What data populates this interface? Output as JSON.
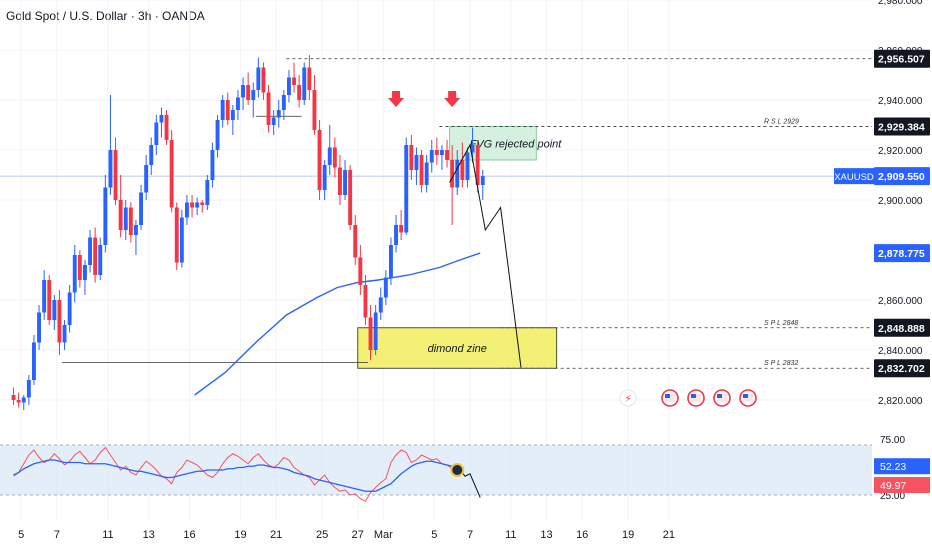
{
  "header": {
    "title": "Gold Spot / U.S. Dollar · 3h · OANDA"
  },
  "colors": {
    "bull": "#2962ff",
    "bear": "#f23645",
    "ma": "#2962ff",
    "rsi_line": "#f7525f",
    "rsi_ma": "#2962ff",
    "rsi_band": "#d7e7f5",
    "fvg_fill": "#d6f0e0",
    "zone_fill": "#f4f075",
    "axis_text": "#131722"
  },
  "chart_data": {
    "type": "candlestick",
    "symbol": "XAUUSD",
    "interval": "3h",
    "ylim": [
      2812,
      2980
    ],
    "y_ticks": [
      2820,
      2840,
      2860,
      2900,
      2920,
      2940,
      2960,
      2980
    ],
    "y_tick_labels": [
      "2,820.000",
      "2,840.000",
      "2,860.000",
      "2,900.000",
      "2,920.000",
      "2,940.000",
      "2,960.000",
      "2,980.000"
    ],
    "x_tick_labels": [
      "5",
      "7",
      "11",
      "13",
      "16",
      "19",
      "21",
      "25",
      "27",
      "Mar",
      "5",
      "7",
      "11",
      "13",
      "16",
      "19",
      "21"
    ],
    "x_tick_index": [
      2,
      9,
      19,
      27,
      35,
      45,
      52,
      61,
      68,
      73,
      83,
      90,
      98,
      105,
      112,
      121,
      129
    ],
    "bar_count": 131,
    "price_labels": [
      {
        "value": 2956.507,
        "label": "2,956.507",
        "style": "dark"
      },
      {
        "value": 2929.384,
        "label": "2,929.384",
        "style": "dark"
      },
      {
        "value": 2909.55,
        "label": "2,909.550",
        "style": "blue",
        "tag": "XAUUSD"
      },
      {
        "value": 2878.775,
        "label": "2,878.775",
        "style": "blue"
      },
      {
        "value": 2848.888,
        "label": "2,848.888",
        "style": "dark"
      },
      {
        "value": 2832.702,
        "label": "2,832.702",
        "style": "dark"
      }
    ],
    "series": [
      {
        "name": "XAUUSD",
        "kind": "candles",
        "description": "3h OHLC candles"
      },
      {
        "name": "",
        "kind": "moving_average",
        "points": [
          [
            36,
            2822
          ],
          [
            42,
            2831
          ],
          [
            48,
            2843
          ],
          [
            54,
            2854
          ],
          [
            60,
            2861
          ],
          [
            64,
            2865
          ],
          [
            68,
            2867
          ],
          [
            72,
            2868
          ],
          [
            78,
            2870
          ],
          [
            84,
            2873
          ],
          [
            88,
            2876
          ],
          [
            92,
            2878.8
          ]
        ]
      }
    ],
    "candles": [
      [
        2822,
        2825,
        2818,
        2820
      ],
      [
        2820,
        2823,
        2817,
        2819
      ],
      [
        2819,
        2822,
        2816,
        2821
      ],
      [
        2821,
        2830,
        2818,
        2828
      ],
      [
        2828,
        2846,
        2826,
        2843
      ],
      [
        2843,
        2858,
        2840,
        2855
      ],
      [
        2855,
        2872,
        2852,
        2868
      ],
      [
        2868,
        2870,
        2850,
        2852
      ],
      [
        2852,
        2862,
        2848,
        2860
      ],
      [
        2860,
        2864,
        2838,
        2843
      ],
      [
        2843,
        2852,
        2840,
        2850
      ],
      [
        2850,
        2866,
        2847,
        2863
      ],
      [
        2863,
        2882,
        2859,
        2878
      ],
      [
        2878,
        2880,
        2865,
        2868
      ],
      [
        2868,
        2876,
        2862,
        2874
      ],
      [
        2874,
        2888,
        2871,
        2885
      ],
      [
        2885,
        2889,
        2867,
        2870
      ],
      [
        2870,
        2885,
        2868,
        2882
      ],
      [
        2882,
        2910,
        2879,
        2905
      ],
      [
        2905,
        2942,
        2902,
        2920
      ],
      [
        2920,
        2925,
        2898,
        2900
      ],
      [
        2900,
        2910,
        2885,
        2888
      ],
      [
        2888,
        2900,
        2884,
        2897
      ],
      [
        2897,
        2899,
        2883,
        2886
      ],
      [
        2886,
        2892,
        2878,
        2890
      ],
      [
        2890,
        2906,
        2888,
        2903
      ],
      [
        2903,
        2918,
        2900,
        2914
      ],
      [
        2914,
        2925,
        2910,
        2922
      ],
      [
        2922,
        2934,
        2918,
        2931
      ],
      [
        2931,
        2937,
        2925,
        2934
      ],
      [
        2934,
        2936,
        2922,
        2924
      ],
      [
        2924,
        2928,
        2895,
        2897
      ],
      [
        2897,
        2899,
        2872,
        2875
      ],
      [
        2875,
        2896,
        2873,
        2893
      ],
      [
        2893,
        2902,
        2890,
        2899
      ],
      [
        2899,
        2902,
        2893,
        2897
      ],
      [
        2897,
        2901,
        2894,
        2899
      ],
      [
        2899,
        2900,
        2895,
        2898
      ],
      [
        2898,
        2910,
        2896,
        2908
      ],
      [
        2908,
        2923,
        2905,
        2920
      ],
      [
        2920,
        2934,
        2917,
        2932
      ],
      [
        2932,
        2942,
        2929,
        2940
      ],
      [
        2940,
        2943,
        2930,
        2932
      ],
      [
        2932,
        2938,
        2926,
        2936
      ],
      [
        2936,
        2944,
        2932,
        2941
      ],
      [
        2941,
        2949,
        2936,
        2946
      ],
      [
        2946,
        2951,
        2938,
        2940
      ],
      [
        2940,
        2947,
        2933,
        2944
      ],
      [
        2944,
        2957,
        2941,
        2953
      ],
      [
        2953,
        2955,
        2940,
        2943
      ],
      [
        2943,
        2946,
        2927,
        2930
      ],
      [
        2930,
        2936,
        2926,
        2933
      ],
      [
        2933,
        2940,
        2929,
        2936
      ],
      [
        2936,
        2944,
        2932,
        2942
      ],
      [
        2942,
        2952,
        2939,
        2949
      ],
      [
        2949,
        2955,
        2943,
        2946
      ],
      [
        2946,
        2950,
        2937,
        2940
      ],
      [
        2940,
        2955,
        2938,
        2953
      ],
      [
        2953,
        2958,
        2940,
        2944
      ],
      [
        2944,
        2950,
        2926,
        2928
      ],
      [
        2928,
        2932,
        2900,
        2904
      ],
      [
        2904,
        2916,
        2900,
        2914
      ],
      [
        2914,
        2930,
        2910,
        2921
      ],
      [
        2921,
        2925,
        2909,
        2913
      ],
      [
        2913,
        2918,
        2898,
        2902
      ],
      [
        2902,
        2916,
        2900,
        2912
      ],
      [
        2912,
        2914,
        2888,
        2890
      ],
      [
        2890,
        2894,
        2874,
        2877
      ],
      [
        2877,
        2882,
        2862,
        2866
      ],
      [
        2866,
        2870,
        2850,
        2853
      ],
      [
        2853,
        2858,
        2836,
        2840
      ],
      [
        2840,
        2858,
        2838,
        2855
      ],
      [
        2855,
        2865,
        2852,
        2861
      ],
      [
        2861,
        2872,
        2858,
        2869
      ],
      [
        2869,
        2885,
        2866,
        2882
      ],
      [
        2882,
        2894,
        2879,
        2890
      ],
      [
        2890,
        2896,
        2884,
        2887
      ],
      [
        2887,
        2925,
        2886,
        2922
      ],
      [
        2922,
        2926,
        2908,
        2912
      ],
      [
        2912,
        2921,
        2906,
        2918
      ],
      [
        2918,
        2920,
        2903,
        2906
      ],
      [
        2906,
        2918,
        2903,
        2915
      ],
      [
        2915,
        2924,
        2911,
        2920
      ],
      [
        2920,
        2925,
        2914,
        2918
      ],
      [
        2918,
        2922,
        2912,
        2920
      ],
      [
        2920,
        2924,
        2913,
        2916
      ],
      [
        2916,
        2922,
        2890,
        2905
      ],
      [
        2905,
        2920,
        2902,
        2916
      ],
      [
        2916,
        2923,
        2905,
        2908
      ],
      [
        2908,
        2921,
        2905,
        2919
      ],
      [
        2919,
        2929,
        2915,
        2922
      ],
      [
        2922,
        2924,
        2903,
        2906
      ],
      [
        2906,
        2912,
        2900,
        2909.5
      ]
    ],
    "hlines": [
      {
        "value": 2956.507,
        "from_bar": 54,
        "style": "dashed"
      },
      {
        "value": 2929.384,
        "from_bar": 84,
        "style": "dashed",
        "label": "R S L 2929"
      },
      {
        "value": 2848.888,
        "from_bar": 96,
        "style": "dashed",
        "label": "S P L 2848"
      },
      {
        "value": 2832.702,
        "from_bar": 96,
        "style": "dashed",
        "label": "S P L 2832"
      },
      {
        "value": 2933.5,
        "from_bar": 48,
        "to_bar": 57,
        "style": "solid"
      },
      {
        "value": 2835,
        "from_bar": 10,
        "to_bar": 70,
        "style": "solid"
      }
    ],
    "zones": [
      {
        "label": "FVG rejected point",
        "from_bar": 86,
        "to_bar": 103,
        "y_top": 2929.384,
        "y_bottom": 2916
      },
      {
        "label": "dimond zine",
        "from_bar": 68,
        "to_bar": 107,
        "y_top": 2848.888,
        "y_bottom": 2832.702
      }
    ],
    "projection": [
      [
        86,
        2907
      ],
      [
        90,
        2922
      ],
      [
        93,
        2888
      ],
      [
        96,
        2897
      ],
      [
        100,
        2833
      ]
    ],
    "arrows_at_bars": [
      75,
      86
    ],
    "rsi": {
      "ylim": [
        18,
        82
      ],
      "levels": [
        70,
        30
      ],
      "tick_labels": [
        "75.00",
        "25.00"
      ],
      "ma_value": 52.23,
      "ma_label": "52.23",
      "value": 49.97,
      "value_label": "49.97",
      "rsi_series": [
        45,
        48,
        55,
        62,
        66,
        60,
        56,
        58,
        63,
        59,
        54,
        57,
        62,
        65,
        60,
        55,
        58,
        64,
        68,
        62,
        56,
        50,
        53,
        48,
        46,
        52,
        57,
        54,
        50,
        45,
        43,
        39,
        48,
        52,
        58,
        56,
        54,
        50,
        46,
        44,
        48,
        55,
        60,
        63,
        61,
        58,
        55,
        60,
        63,
        58,
        54,
        52,
        55,
        60,
        58,
        52,
        49,
        46,
        44,
        38,
        42,
        46,
        40,
        36,
        33,
        34,
        30,
        31,
        27,
        25,
        32,
        36,
        40,
        43,
        56,
        62,
        66,
        64,
        56,
        58,
        62,
        60,
        58,
        59,
        55,
        54,
        51,
        50
      ],
      "ma_series": [
        46,
        48,
        51,
        53,
        55,
        56,
        57,
        58,
        58,
        57,
        56,
        56,
        56,
        56,
        55,
        55,
        55,
        55,
        55,
        54,
        53,
        52,
        51,
        50,
        49,
        49,
        48,
        47,
        46,
        45,
        44,
        44,
        45,
        46,
        47,
        48,
        49,
        49,
        50,
        50,
        50,
        50,
        51,
        51,
        52,
        52,
        53,
        53,
        54,
        54,
        53,
        52,
        52,
        51,
        50,
        48,
        47,
        46,
        45,
        43,
        42,
        41,
        40,
        39,
        38,
        37,
        36,
        35,
        34,
        33,
        33,
        33,
        35,
        37,
        39,
        43,
        47,
        50,
        53,
        55,
        56,
        57,
        57,
        56,
        55,
        54,
        53,
        52.2
      ],
      "projection": [
        [
          88,
          51
        ],
        [
          89,
          45
        ],
        [
          90,
          47
        ],
        [
          92,
          28
        ]
      ]
    }
  }
}
